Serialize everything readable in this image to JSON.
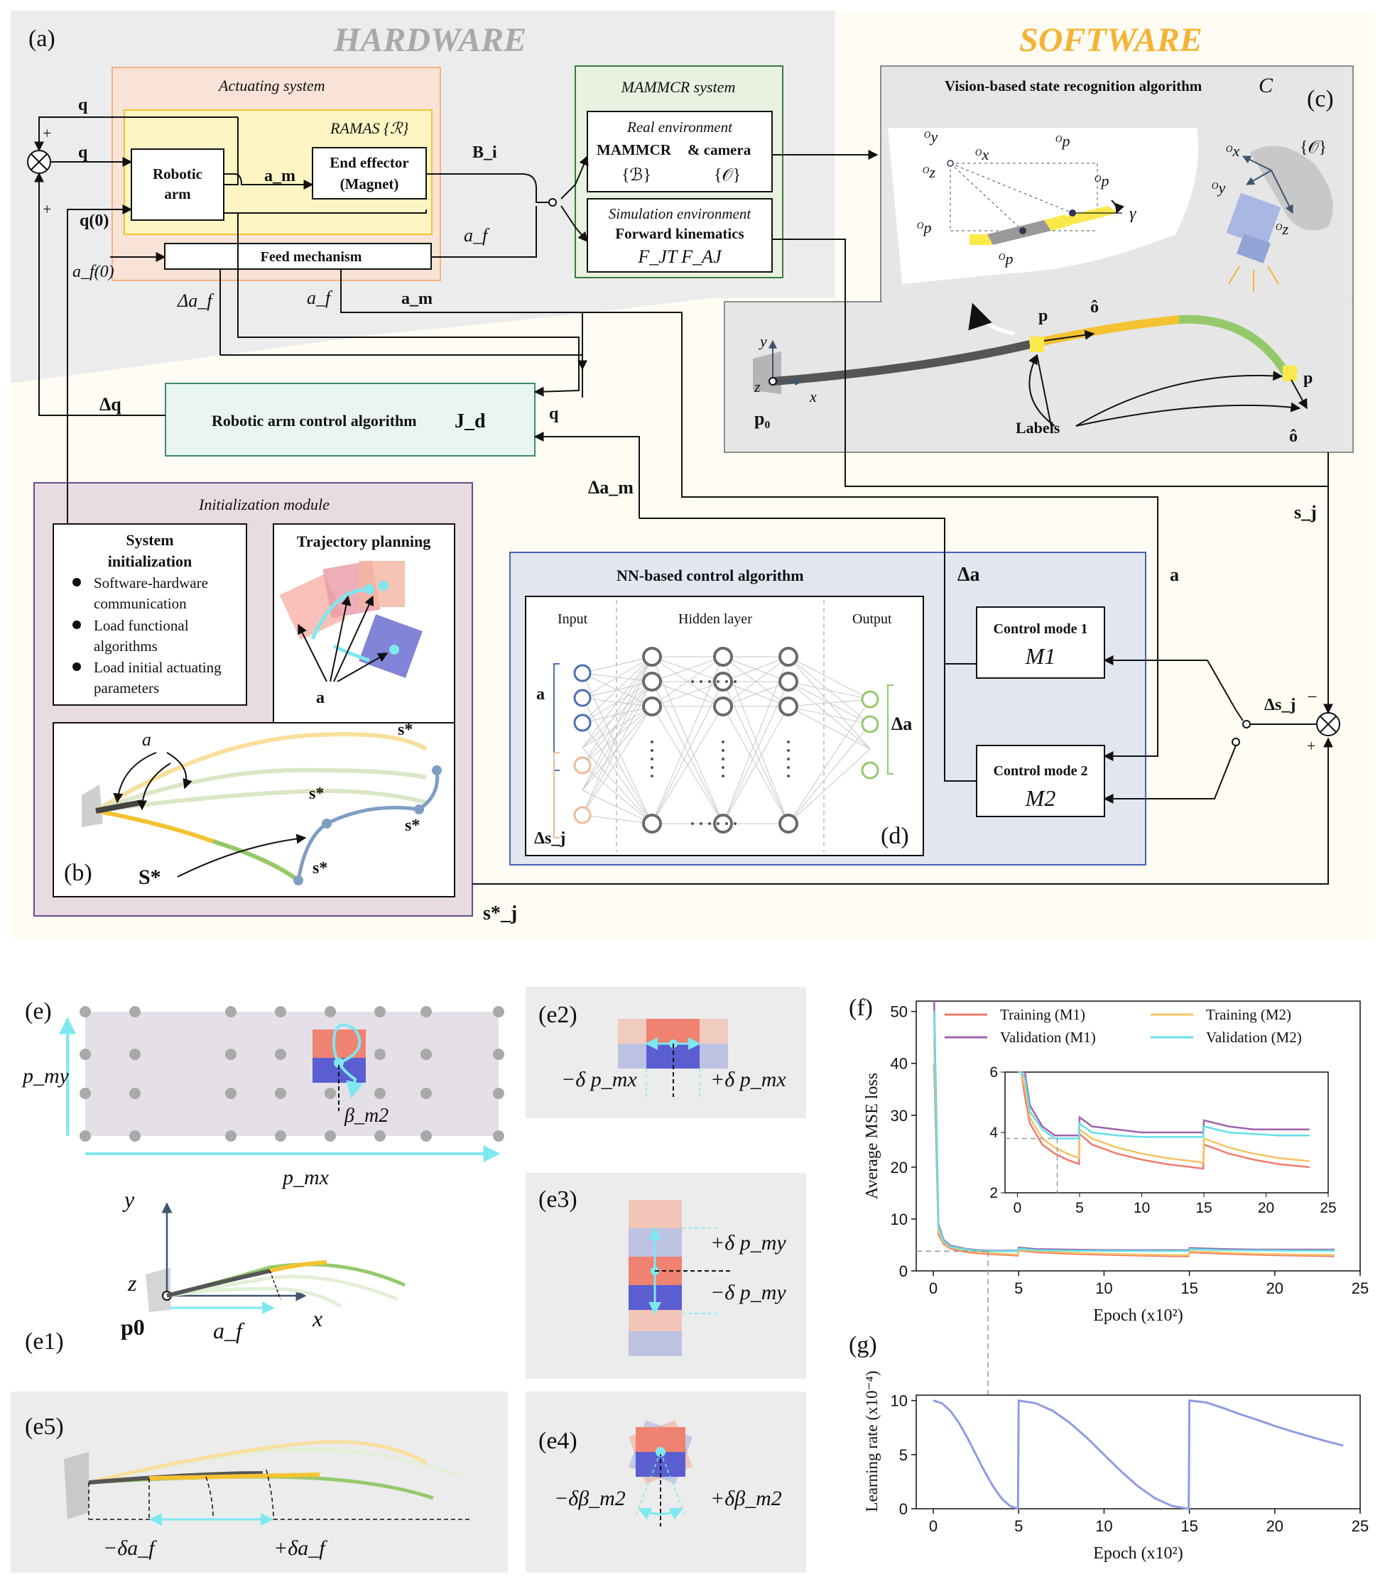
{
  "top_banner": {
    "hardware_label": "HARDWARE",
    "software_label": "SOFTWARE"
  },
  "panel_labels": {
    "a": "(a)",
    "b": "(b)",
    "c": "(c)",
    "d": "(d)",
    "e": "(e)",
    "e1": "(e1)",
    "e2": "(e2)",
    "e3": "(e3)",
    "e4": "(e4)",
    "e5": "(e5)",
    "f": "(f)",
    "g": "(g)"
  },
  "hardware": {
    "actuating_title": "Actuating system",
    "ramas_title": "RAMAS {ℛ}",
    "robotic_arm_line1": "Robotic",
    "robotic_arm_line2": "arm",
    "end_effector_line1": "End effector",
    "end_effector_line2": "(Magnet)",
    "feed_mechanism": "Feed mechanism",
    "mammcr_title": "MAMMCR system",
    "real_env_title": "Real environment",
    "real_env_line2a": "MAMMCR",
    "real_env_line2b": "& camera",
    "real_env_line3a": "{ℬ}",
    "real_env_line3b": "{𝒪}",
    "sim_env_title": "Simulation environment",
    "sim_env_line2": "Forward kinematics",
    "sim_env_line3": "F_JT F_AJ",
    "control_algorithm_label": "Robotic arm control algorithm",
    "control_algorithm_symbol": "J_d"
  },
  "signals": {
    "q": "q",
    "q0": "q(0)",
    "af": "a_f",
    "af0": "a_f(0)",
    "am": "a_m",
    "Bi": "B_i",
    "delta_af": "Δa_f",
    "delta_q": "Δq",
    "delta_am": "Δa_m",
    "sj": "s_j",
    "sj_star": "s*_j",
    "a": "a",
    "delta_a": "Δa",
    "delta_sj": "Δs_j",
    "minus": "−",
    "plus": "+"
  },
  "software": {
    "vision_title": "Vision-based state recognition algorithm",
    "vision_symbol": "C",
    "labels_text": "Labels",
    "frame_O": "{𝒪}"
  },
  "init_module": {
    "title": "Initialization module",
    "sys_init_title_1": "System",
    "sys_init_title_2": "initialization",
    "bullets": [
      [
        "Software-hardware",
        "communication"
      ],
      [
        "Load functional",
        "algorithms"
      ],
      [
        "Load initial actuating",
        "parameters"
      ]
    ],
    "trajectory_title": "Trajectory planning",
    "s_star": "S*"
  },
  "nn_module": {
    "title": "NN-based control algorithm",
    "input_label": "Input",
    "hidden_label": "Hidden layer",
    "output_label": "Output",
    "mode1_title": "Control mode 1",
    "mode1_symbol": "M1",
    "mode2_title": "Control mode 2",
    "mode2_symbol": "M2"
  },
  "panel_e": {
    "pmy": "p_my",
    "pmx": "p_mx",
    "beta": "β_m2",
    "y": "y",
    "x": "x",
    "z": "z",
    "p0": "p0",
    "af": "a_f",
    "e2_minus": "−δ p_mx",
    "e2_plus": "+δ p_mx",
    "e3_plus": "+δ p_my",
    "e3_minus": "−δ p_my",
    "e4_minus": "−δβ_m2",
    "e4_plus": "+δβ_m2",
    "e5_minus": "−δa_f",
    "e5_plus": "+δa_f"
  },
  "colors": {
    "hardware_bg": "#ececec",
    "software_bg": "#fefcf3",
    "actuating": "#f8e3d6",
    "ramas": "#fdf6c4",
    "mammcr": "#e9f1e1",
    "vision": "#e6e6e6",
    "init": "#e8dce2",
    "nn": "#e2e6ef",
    "ctrl": "#e8f5f0",
    "red_series": "#f07b6c",
    "purple_series": "#9e63a8",
    "orange_series": "#f7c264",
    "cyan_series": "#62dfea",
    "lr_series": "#8e9ce2",
    "cyan_accent": "#7de8f0"
  },
  "chart_data": [
    {
      "type": "line",
      "title": "",
      "xlabel": "Epoch (x10²)",
      "ylabel": "Average MSE loss",
      "xlim": [
        0,
        25
      ],
      "ylim": [
        0,
        52
      ],
      "xticks": [
        0,
        5,
        10,
        15,
        20,
        25
      ],
      "yticks": [
        0,
        10,
        20,
        30,
        40,
        50
      ],
      "legend_placement": "top",
      "series": [
        {
          "name": "Training (M1)",
          "color": "#f07b6c",
          "x": [
            0.05,
            0.3,
            0.6,
            1,
            2,
            3,
            4,
            4.95,
            5.0,
            6,
            8,
            10,
            12,
            14,
            14.95,
            15.0,
            17,
            19,
            21,
            23.5
          ],
          "y": [
            40,
            7,
            5.2,
            4.3,
            3.6,
            3.3,
            3.1,
            2.95,
            3.95,
            3.6,
            3.3,
            3.1,
            2.95,
            2.85,
            2.8,
            3.6,
            3.3,
            3.1,
            2.95,
            2.85
          ]
        },
        {
          "name": "Validation (M1)",
          "color": "#9e63a8",
          "x": [
            0.05,
            0.3,
            0.6,
            1,
            2,
            3,
            4,
            4.95,
            5.0,
            6,
            8,
            10,
            12,
            14,
            14.95,
            15.0,
            17,
            19,
            21,
            23.5
          ],
          "y": [
            52,
            9,
            6,
            4.9,
            4.2,
            3.9,
            3.9,
            3.9,
            4.5,
            4.2,
            4.1,
            4.0,
            4.0,
            4.0,
            4.0,
            4.4,
            4.2,
            4.1,
            4.1,
            4.1
          ]
        },
        {
          "name": "Training (M2)",
          "color": "#f7c264",
          "x": [
            0.05,
            0.3,
            0.6,
            1,
            2,
            3,
            4,
            4.95,
            5.0,
            6,
            8,
            10,
            12,
            14,
            14.95,
            15.0,
            17,
            19,
            21,
            23.5
          ],
          "y": [
            45,
            7.5,
            5.5,
            4.5,
            3.8,
            3.5,
            3.3,
            3.15,
            4.1,
            3.8,
            3.5,
            3.3,
            3.15,
            3.05,
            3.0,
            3.8,
            3.5,
            3.3,
            3.15,
            3.05
          ]
        },
        {
          "name": "Validation (M2)",
          "color": "#62dfea",
          "x": [
            0.05,
            0.3,
            0.6,
            1,
            2,
            3,
            4,
            4.95,
            5.0,
            6,
            8,
            10,
            12,
            14,
            14.95,
            15.0,
            17,
            19,
            21,
            23.5
          ],
          "y": [
            50,
            8.5,
            5.8,
            4.7,
            4.1,
            3.8,
            3.8,
            3.8,
            4.3,
            4.0,
            3.9,
            3.85,
            3.85,
            3.85,
            3.85,
            4.2,
            4.0,
            3.95,
            3.9,
            3.9
          ]
        }
      ],
      "inset": {
        "xlim": [
          -1,
          25
        ],
        "ylim": [
          2,
          6
        ],
        "xticks": [
          0,
          5,
          10,
          15,
          20,
          25
        ],
        "yticks": [
          2,
          4,
          6
        ]
      }
    },
    {
      "type": "line",
      "title": "",
      "xlabel": "Epoch (x10²)",
      "ylabel": "Learning rate (x10⁻⁴)",
      "xlim": [
        -1,
        25
      ],
      "ylim": [
        0,
        10.5
      ],
      "xticks": [
        0,
        5,
        10,
        15,
        20,
        25
      ],
      "yticks": [
        0,
        5,
        10
      ],
      "series": [
        {
          "color": "#8e9ce2",
          "x": [
            0,
            0.5,
            1,
            1.5,
            2,
            2.5,
            3,
            3.5,
            4,
            4.5,
            4.95,
            4.96,
            5.0,
            6,
            7,
            8,
            9,
            10,
            11,
            12,
            13,
            14,
            14.95,
            14.96,
            15.0,
            16,
            17,
            18,
            19,
            20,
            21,
            22,
            23,
            24
          ],
          "y": [
            10,
            9.75,
            9.05,
            7.94,
            6.55,
            5.0,
            3.45,
            2.06,
            0.95,
            0.25,
            0.0,
            0.0,
            10,
            9.75,
            9.05,
            7.94,
            6.55,
            5.0,
            3.45,
            2.06,
            0.95,
            0.25,
            0.0,
            0.0,
            10,
            9.82,
            9.3,
            8.72,
            8.2,
            7.65,
            7.15,
            6.7,
            6.25,
            5.85
          ]
        }
      ]
    }
  ]
}
